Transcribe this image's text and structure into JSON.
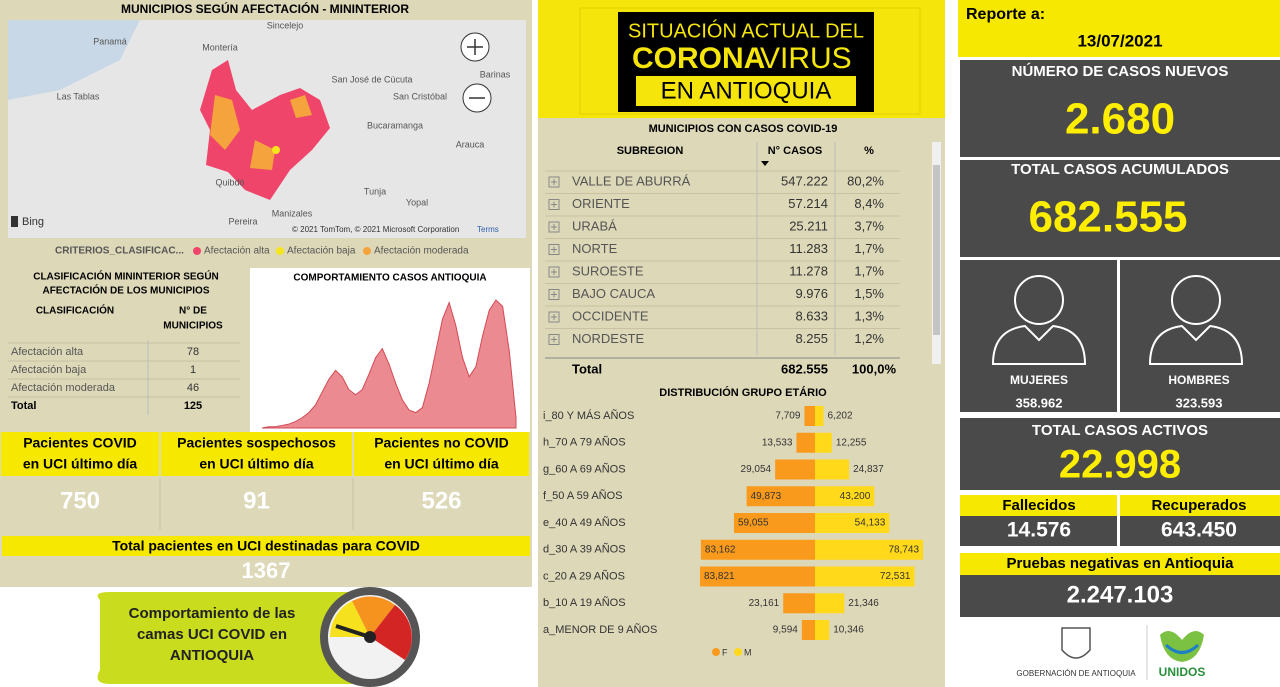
{
  "map": {
    "title": "MUNICIPIOS SEGÚN AFECTACIÓN - MININTERIOR",
    "places": [
      "Panamá",
      "Montería",
      "Sincelejo",
      "San José de Cúcuta",
      "Bucaramanga",
      "Arauca",
      "Tunja",
      "Yopal",
      "Manizales",
      "Pereira",
      "Quibdó",
      "Las Tablas",
      "San Cristóbal",
      "Barinas"
    ],
    "bing": "Bing",
    "attribution": "© 2021 TomTom, © 2021 Microsoft Corporation",
    "terms": "Terms",
    "legend_title": "CRITERIOS_CLASIFICAC...",
    "legend": [
      {
        "label": "Afectación alta",
        "color": "#f0456b"
      },
      {
        "label": "Afectación baja",
        "color": "#f5e51c"
      },
      {
        "label": "Afectación moderada",
        "color": "#f5a33c"
      }
    ]
  },
  "classification": {
    "title": [
      "CLASIFICACIÓN MININTERIOR SEGÚN",
      "AFECTACIÓN DE LOS MUNICIPIOS"
    ],
    "header_1": "CLASIFICACIÓN",
    "header_2": [
      "N° DE",
      "MUNICIPIOS"
    ],
    "rows": [
      [
        "Afectación alta",
        "78"
      ],
      [
        "Afectación baja",
        "1"
      ],
      [
        "Afectación moderada",
        "46"
      ]
    ],
    "total": [
      "Total",
      "125"
    ]
  },
  "behavior": {
    "type": "area",
    "title": "COMPORTAMIENTO CASOS ANTIOQUIA",
    "color": "#e8767c",
    "values": [
      0,
      1,
      1,
      2,
      3,
      5,
      8,
      12,
      18,
      28,
      38,
      45,
      40,
      30,
      26,
      30,
      42,
      55,
      62,
      50,
      35,
      22,
      14,
      12,
      16,
      35,
      60,
      85,
      98,
      80,
      55,
      40,
      48,
      72,
      92,
      100,
      95,
      60,
      8
    ]
  },
  "icu": {
    "cards": [
      {
        "label": [
          "Pacientes COVID",
          "en UCI último día"
        ],
        "value": "750"
      },
      {
        "label": [
          "Pacientes sospechosos",
          "en UCI último día"
        ],
        "value": "91"
      },
      {
        "label": [
          "Pacientes no COVID",
          "en UCI último día"
        ],
        "value": "526"
      }
    ],
    "total_label": "Total pacientes en UCI destinadas para COVID",
    "total_value": "1367"
  },
  "gauge": {
    "lines": [
      "Comportamiento de las",
      "camas UCI COVID en",
      "ANTIOQUIA"
    ]
  },
  "logo": {
    "line1": "SITUACIÓN ACTUAL DEL",
    "corona": "CORONA",
    "virus": "VIRUS",
    "line3": "EN ANTIOQUIA"
  },
  "municipalities": {
    "title": "MUNICIPIOS CON CASOS COVID-19",
    "headers": [
      "SUBREGION",
      "N° CASOS",
      "%"
    ],
    "rows": [
      [
        "VALLE DE ABURRÁ",
        "547.222",
        "80,2%"
      ],
      [
        "ORIENTE",
        "57.214",
        "8,4%"
      ],
      [
        "URABÁ",
        "25.211",
        "3,7%"
      ],
      [
        "NORTE",
        "11.283",
        "1,7%"
      ],
      [
        "SUROESTE",
        "11.278",
        "1,7%"
      ],
      [
        "BAJO CAUCA",
        "9.976",
        "1,5%"
      ],
      [
        "OCCIDENTE",
        "8.633",
        "1,3%"
      ],
      [
        "NORDESTE",
        "8.255",
        "1,2%"
      ]
    ],
    "total": [
      "Total",
      "682.555",
      "100,0%"
    ]
  },
  "age_pyramid": {
    "type": "pyramid",
    "title": "DISTRIBUCIÓN GRUPO ETÁRIO",
    "categories": [
      "i_80 Y MÁS AÑOS",
      "h_70 A 79 AÑOS",
      "g_60 A 69 AÑOS",
      "f_50 A 59 AÑOS",
      "e_40 A 49 AÑOS",
      "d_30 A 39 AÑOS",
      "c_20 A 29 AÑOS",
      "b_10 A 19 AÑOS",
      "a_MENOR DE 9 AÑOS"
    ],
    "series": [
      {
        "name": "F",
        "color": "#f99a1c",
        "values": [
          7709,
          13533,
          29054,
          49873,
          59055,
          83162,
          83821,
          23161,
          9594
        ],
        "value_labels": [
          "7,709",
          "13,533",
          "29,054",
          "49,873",
          "59,055",
          "83,162",
          "83,821",
          "23,161",
          "9,594"
        ]
      },
      {
        "name": "M",
        "color": "#ffd91a",
        "values": [
          6202,
          12255,
          24837,
          43200,
          54133,
          78743,
          72531,
          21346,
          10346
        ],
        "value_labels": [
          "6,202",
          "12,255",
          "24,837",
          "43,200",
          "54,133",
          "78,743",
          "72,531",
          "21,346",
          "10,346"
        ]
      }
    ]
  },
  "report": {
    "label": "Reporte a:",
    "date": "13/07/2021",
    "new_cases_label": "NÚMERO DE CASOS NUEVOS",
    "new_cases": "2.680",
    "total_label": "TOTAL CASOS ACUMULADOS",
    "total": "682.555",
    "women_label": "MUJERES",
    "women": "358.962",
    "men_label": "HOMBRES",
    "men": "323.593",
    "active_label": "TOTAL CASOS ACTIVOS",
    "active": "22.998",
    "deaths_label": "Fallecidos",
    "deaths": "14.576",
    "recovered_label": "Recuperados",
    "recovered": "643.450",
    "negative_label": "Pruebas negativas en Antioquia",
    "negative": "2.247.103",
    "gov": "GOBERNACIÓN DE ANTIOQUIA",
    "unidos": "UNIDOS"
  }
}
